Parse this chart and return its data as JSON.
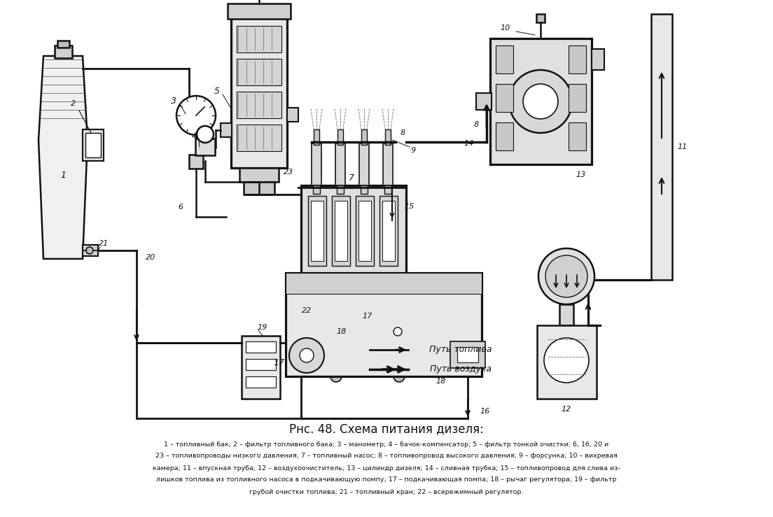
{
  "title": "Рнс. 48. Схема питания дизеля:",
  "caption_line1": "1 – топливный бак; 2 – фильтр топливного бака; 3 – манометр; 4 – бачок-компенсатор; 5 – фильтр тонкой очистки; 6, 16, 20 и",
  "caption_line2": "23 – топливопроводы низкого давления; 7 – топливный насос; 8 – топливопровод высокого давления; 9 – форсунка; 10 – вихревая",
  "caption_line3": "камера; 11 – впускная труба; 12 – воздухоочиститель; 13 – цилиндр дизеля; 14 – сливная трубка; 15 – топливопровод для слива из-",
  "caption_line4": "лишков топлива из топливного насоса в подкачивающую помпу; 17 – подкачивающая помпа; 18 – рычаг регулятора; 19 – фильтр",
  "caption_line5": "грубой очистки топлива; 21 – топливный кран; 22 – всережимный регулятор.",
  "bg_color": "#ffffff",
  "fig_width": 11.04,
  "fig_height": 7.39,
  "dpi": 100
}
